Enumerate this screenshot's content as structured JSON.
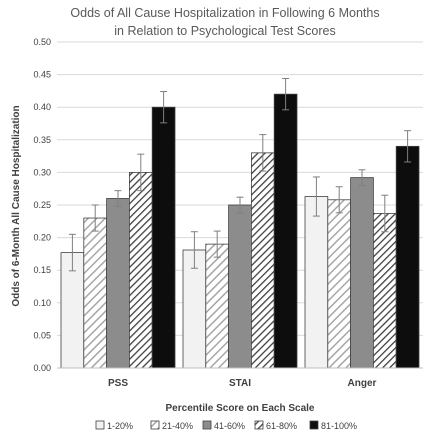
{
  "chart_data": {
    "type": "bar",
    "title": "Odds of All Cause Hospitalization in Following 6 Months",
    "subtitle": "in Relation to Psychological Test Scores",
    "xlabel": "Percentile Score on Each Scale",
    "ylabel": "Odds of 6-Month All Cause Hospitalization",
    "ylim": [
      0,
      0.5
    ],
    "ytick_step": 0.05,
    "ytick_labels": [
      "0.00",
      "0.05",
      "0.10",
      "0.15",
      "0.20",
      "0.25",
      "0.30",
      "0.35",
      "0.40",
      "0.45",
      "0.50"
    ],
    "grid": true,
    "legend_position": "bottom",
    "categories": [
      "PSS",
      "STAI",
      "Anger"
    ],
    "series": [
      {
        "name": "1-20%",
        "pattern": "light",
        "values": [
          0.177,
          0.181,
          0.263
        ],
        "err": [
          0.028,
          0.028,
          0.03
        ]
      },
      {
        "name": "21-40%",
        "pattern": "diag-light",
        "values": [
          0.23,
          0.19,
          0.258
        ],
        "err": [
          0.02,
          0.02,
          0.02
        ]
      },
      {
        "name": "41-60%",
        "pattern": "gray",
        "values": [
          0.26,
          0.25,
          0.292
        ],
        "err": [
          0.012,
          0.012,
          0.012
        ]
      },
      {
        "name": "61-80%",
        "pattern": "diag-dark",
        "values": [
          0.3,
          0.33,
          0.237
        ],
        "err": [
          0.028,
          0.028,
          0.028
        ]
      },
      {
        "name": "81-100%",
        "pattern": "black",
        "values": [
          0.4,
          0.42,
          0.34
        ],
        "err": [
          0.024,
          0.024,
          0.024
        ]
      }
    ]
  }
}
